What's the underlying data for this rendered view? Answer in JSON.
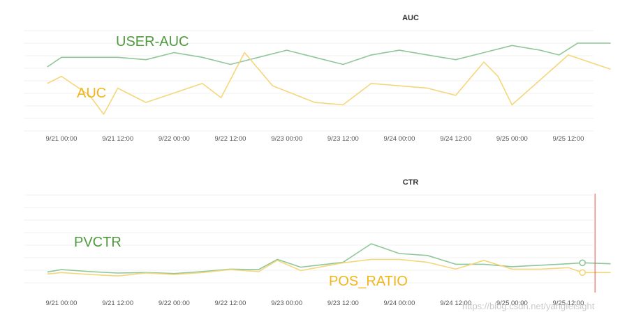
{
  "chart_data": [
    {
      "type": "line",
      "title": "AUC",
      "x_tick_labels": [
        "9/21 00:00",
        "9/21 12:00",
        "9/22 00:00",
        "9/22 12:00",
        "9/23 00:00",
        "9/23 12:00",
        "9/24 00:00",
        "9/24 12:00",
        "9/25 00:00",
        "9/25 12:00"
      ],
      "grid": true,
      "series": [
        {
          "name": "USER-AUC",
          "color": "#8fc79a",
          "label_color": "#4f9a3e",
          "points": [
            {
              "x": "9/20 21:00",
              "y": 0.735
            },
            {
              "x": "9/21 00:00",
              "y": 0.755
            },
            {
              "x": "9/21 06:00",
              "y": 0.755
            },
            {
              "x": "9/21 12:00",
              "y": 0.755
            },
            {
              "x": "9/21 18:00",
              "y": 0.75
            },
            {
              "x": "9/22 00:00",
              "y": 0.765
            },
            {
              "x": "9/22 06:00",
              "y": 0.755
            },
            {
              "x": "9/22 12:00",
              "y": 0.74
            },
            {
              "x": "9/22 18:00",
              "y": 0.755
            },
            {
              "x": "9/23 00:00",
              "y": 0.77
            },
            {
              "x": "9/23 06:00",
              "y": 0.755
            },
            {
              "x": "9/23 12:00",
              "y": 0.74
            },
            {
              "x": "9/23 18:00",
              "y": 0.76
            },
            {
              "x": "9/24 00:00",
              "y": 0.77
            },
            {
              "x": "9/24 06:00",
              "y": 0.76
            },
            {
              "x": "9/24 12:00",
              "y": 0.75
            },
            {
              "x": "9/24 18:00",
              "y": 0.765
            },
            {
              "x": "9/25 00:00",
              "y": 0.78
            },
            {
              "x": "9/25 06:00",
              "y": 0.77
            },
            {
              "x": "9/25 10:00",
              "y": 0.76
            },
            {
              "x": "9/25 14:00",
              "y": 0.785
            },
            {
              "x": "9/25 21:00",
              "y": 0.785
            }
          ]
        },
        {
          "name": "AUC",
          "color": "#f5d67a",
          "label_color": "#f2b61c",
          "points": [
            {
              "x": "9/20 21:00",
              "y": 0.7
            },
            {
              "x": "9/21 00:00",
              "y": 0.715
            },
            {
              "x": "9/21 06:00",
              "y": 0.675
            },
            {
              "x": "9/21 09:00",
              "y": 0.635
            },
            {
              "x": "9/21 12:00",
              "y": 0.69
            },
            {
              "x": "9/21 18:00",
              "y": 0.66
            },
            {
              "x": "9/22 00:00",
              "y": 0.68
            },
            {
              "x": "9/22 06:00",
              "y": 0.7
            },
            {
              "x": "9/22 10:00",
              "y": 0.67
            },
            {
              "x": "9/22 15:00",
              "y": 0.765
            },
            {
              "x": "9/22 21:00",
              "y": 0.695
            },
            {
              "x": "9/23 06:00",
              "y": 0.66
            },
            {
              "x": "9/23 12:00",
              "y": 0.655
            },
            {
              "x": "9/23 18:00",
              "y": 0.7
            },
            {
              "x": "9/24 00:00",
              "y": 0.695
            },
            {
              "x": "9/24 06:00",
              "y": 0.69
            },
            {
              "x": "9/24 12:00",
              "y": 0.675
            },
            {
              "x": "9/24 18:00",
              "y": 0.745
            },
            {
              "x": "9/24 21:00",
              "y": 0.715
            },
            {
              "x": "9/25 00:00",
              "y": 0.655
            },
            {
              "x": "9/25 12:00",
              "y": 0.76
            },
            {
              "x": "9/25 21:00",
              "y": 0.73
            }
          ]
        }
      ]
    },
    {
      "type": "line",
      "title": "CTR",
      "x_tick_labels": [
        "9/21 00:00",
        "9/21 12:00",
        "9/22 00:00",
        "9/22 12:00",
        "9/23 00:00",
        "9/23 12:00",
        "9/24 00:00",
        "9/24 12:00",
        "9/25 00:00",
        "9/25 12:00"
      ],
      "grid": true,
      "marker_line": {
        "x": "9/25 15:00",
        "color": "#e74c3c"
      },
      "series": [
        {
          "name": "PVCTR",
          "color": "#8fc79a",
          "label_color": "#4f9a3e",
          "points": [
            {
              "x": "9/20 21:00",
              "y": 0.042
            },
            {
              "x": "9/21 00:00",
              "y": 0.047
            },
            {
              "x": "9/21 06:00",
              "y": 0.043
            },
            {
              "x": "9/21 12:00",
              "y": 0.04
            },
            {
              "x": "9/21 18:00",
              "y": 0.041
            },
            {
              "x": "9/22 00:00",
              "y": 0.039
            },
            {
              "x": "9/22 06:00",
              "y": 0.043
            },
            {
              "x": "9/22 12:00",
              "y": 0.048
            },
            {
              "x": "9/22 18:00",
              "y": 0.047
            },
            {
              "x": "9/22 22:00",
              "y": 0.068
            },
            {
              "x": "9/23 03:00",
              "y": 0.052
            },
            {
              "x": "9/23 12:00",
              "y": 0.062
            },
            {
              "x": "9/23 18:00",
              "y": 0.1
            },
            {
              "x": "9/24 00:00",
              "y": 0.08
            },
            {
              "x": "9/24 06:00",
              "y": 0.076
            },
            {
              "x": "9/24 12:00",
              "y": 0.058
            },
            {
              "x": "9/24 18:00",
              "y": 0.058
            },
            {
              "x": "9/25 00:00",
              "y": 0.053
            },
            {
              "x": "9/25 06:00",
              "y": 0.056
            },
            {
              "x": "9/25 12:00",
              "y": 0.059
            },
            {
              "x": "9/25 15:00",
              "y": 0.061
            },
            {
              "x": "9/25 21:00",
              "y": 0.059
            }
          ]
        },
        {
          "name": "POS_RATIO",
          "color": "#f5d67a",
          "label_color": "#f2b61c",
          "points": [
            {
              "x": "9/20 21:00",
              "y": 0.038
            },
            {
              "x": "9/21 00:00",
              "y": 0.041
            },
            {
              "x": "9/21 06:00",
              "y": 0.037
            },
            {
              "x": "9/21 12:00",
              "y": 0.034
            },
            {
              "x": "9/21 18:00",
              "y": 0.04
            },
            {
              "x": "9/22 00:00",
              "y": 0.037
            },
            {
              "x": "9/22 06:00",
              "y": 0.041
            },
            {
              "x": "9/22 12:00",
              "y": 0.047
            },
            {
              "x": "9/22 18:00",
              "y": 0.043
            },
            {
              "x": "9/22 22:00",
              "y": 0.066
            },
            {
              "x": "9/23 03:00",
              "y": 0.045
            },
            {
              "x": "9/23 12:00",
              "y": 0.061
            },
            {
              "x": "9/23 18:00",
              "y": 0.068
            },
            {
              "x": "9/24 00:00",
              "y": 0.068
            },
            {
              "x": "9/24 06:00",
              "y": 0.062
            },
            {
              "x": "9/24 12:00",
              "y": 0.048
            },
            {
              "x": "9/24 18:00",
              "y": 0.066
            },
            {
              "x": "9/25 00:00",
              "y": 0.048
            },
            {
              "x": "9/25 06:00",
              "y": 0.048
            },
            {
              "x": "9/25 12:00",
              "y": 0.051
            },
            {
              "x": "9/25 15:00",
              "y": 0.041
            },
            {
              "x": "9/25 21:00",
              "y": 0.041
            }
          ]
        }
      ]
    }
  ],
  "watermark": "https://blog.csdn.net/yangfeisight"
}
